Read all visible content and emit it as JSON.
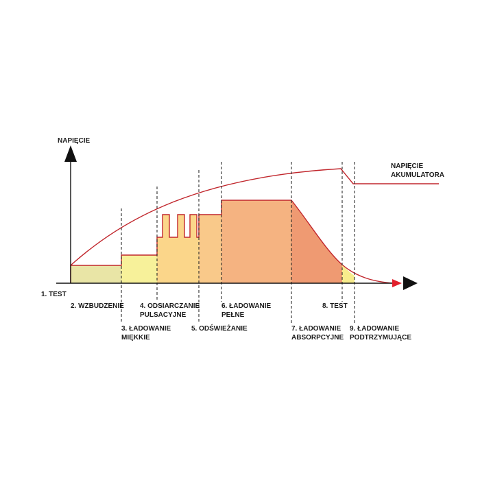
{
  "axis": {
    "y_label": "NAPIĘCIE"
  },
  "legend": {
    "line1": "NAPIĘCIE",
    "line2": "AKUMULATORA"
  },
  "stages": {
    "s1": "1. TEST",
    "s2": "2. WZBUDZENIE",
    "s3_line1": "3. ŁADOWANIE",
    "s3_line2": "MIĘKKIE",
    "s4_line1": "4. ODSIARCZANIE",
    "s4_line2": "PULSACYJNE",
    "s5": "5. ODŚWIEŻANIE",
    "s6_line1": "6. ŁADOWANIE",
    "s6_line2": "PEŁNE",
    "s7_line1": "7. ŁADOWANIE",
    "s7_line2": "ABSORPCYJNE",
    "s8": "8. TEST",
    "s9_line1": "9. ŁADOWANIE",
    "s9_line2": "PODTRZYMUJĄCE"
  },
  "colors": {
    "curve": "#c1272d",
    "axis_arrow_red": "#e2202c",
    "axis": "#111111",
    "fill_stage2": "#e9e5a6",
    "fill_stage3": "#f7f19a",
    "fill_stage4": "#fbd68a",
    "fill_stage5": "#f9c98a",
    "fill_stage6": "#f5b381",
    "fill_stage7": "#ef9a72",
    "fill_stage9": "#f7ec8c"
  }
}
